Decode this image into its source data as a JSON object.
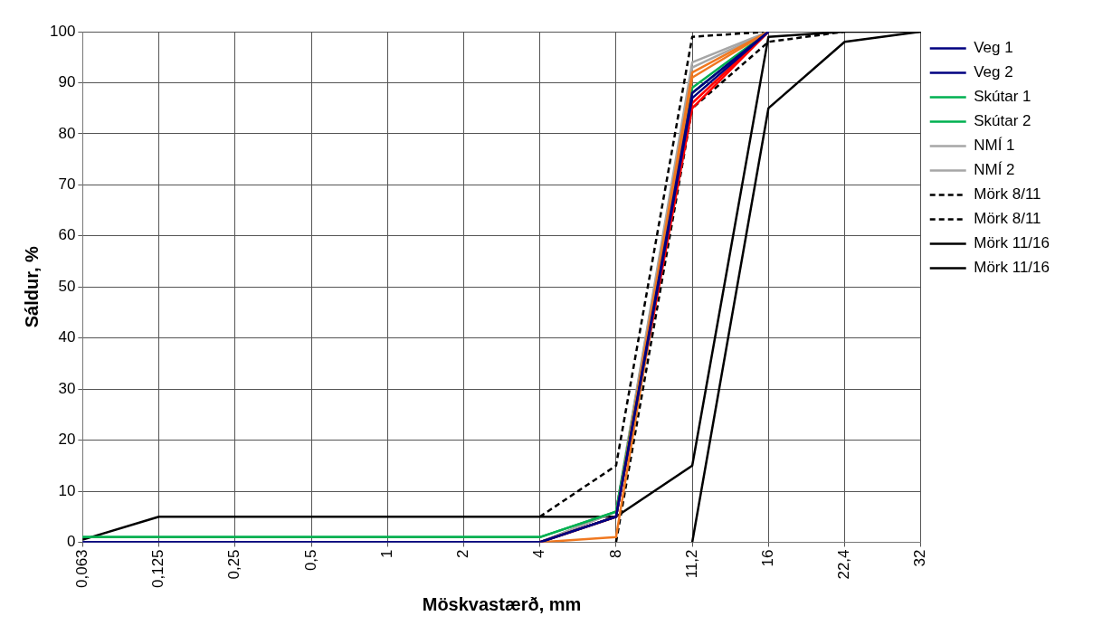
{
  "chart_data": {
    "type": "line",
    "xlabel": "Möskvastærð, mm",
    "ylabel": "Sáldur, %",
    "categories": [
      "0,063",
      "0,125",
      "0,25",
      "0,5",
      "1",
      "2",
      "4",
      "8",
      "11,2",
      "16",
      "22,4",
      "32"
    ],
    "ylim": [
      0,
      100
    ],
    "yticks": [
      0,
      10,
      20,
      30,
      40,
      50,
      60,
      70,
      80,
      90,
      100
    ],
    "grid": true,
    "legend": "right",
    "marker": "none",
    "series": [
      {
        "name": "Veg 1",
        "color": "#000080",
        "values": [
          0,
          0,
          0,
          0,
          0,
          0,
          0,
          5,
          88,
          100,
          null,
          null
        ]
      },
      {
        "name": "Veg 2",
        "color": "#000080",
        "values": [
          0,
          0,
          0,
          0,
          0,
          0,
          0,
          5,
          87,
          100,
          null,
          null
        ]
      },
      {
        "color": "#f07820",
        "values": [
          null,
          null,
          null,
          null,
          null,
          null,
          0,
          1,
          91,
          100,
          null,
          null
        ]
      },
      {
        "color": "#f07820",
        "values": [
          null,
          null,
          null,
          null,
          null,
          null,
          0,
          5,
          92,
          100,
          null,
          null
        ]
      },
      {
        "color": "#ff0000",
        "values": [
          null,
          null,
          null,
          null,
          null,
          null,
          0,
          5,
          85,
          100,
          null,
          null
        ]
      },
      {
        "color": "#ff0000",
        "values": [
          null,
          null,
          null,
          null,
          null,
          null,
          0,
          5,
          86,
          100,
          null,
          null
        ]
      },
      {
        "name": "Skútar 1",
        "color": "#00b050",
        "values": [
          1,
          1,
          1,
          1,
          1,
          1,
          1,
          6,
          89,
          100,
          null,
          null
        ]
      },
      {
        "name": "Skútar 2",
        "color": "#00b050",
        "values": [
          1,
          1,
          1,
          1,
          1,
          1,
          1,
          6,
          88,
          100,
          null,
          null
        ]
      },
      {
        "name": "NMÍ 1",
        "color": "#a6a6a6",
        "values": [
          0,
          0,
          0,
          0,
          0,
          0,
          0,
          6,
          94,
          100,
          null,
          null
        ]
      },
      {
        "name": "NMÍ 2",
        "color": "#a6a6a6",
        "values": [
          0,
          0,
          0,
          0,
          0,
          0,
          0,
          6,
          93,
          100,
          null,
          null
        ]
      },
      {
        "name": "Mörk 8/11",
        "color": "#000000",
        "line_style": "dashed",
        "values": [
          null,
          null,
          null,
          null,
          null,
          null,
          5,
          15,
          99,
          100,
          null,
          null
        ]
      },
      {
        "name": "Mörk 8/11",
        "color": "#000000",
        "line_style": "dashed",
        "values": [
          null,
          null,
          null,
          null,
          null,
          null,
          null,
          0,
          85,
          98,
          100,
          null
        ]
      },
      {
        "name": "Mörk 11/16",
        "color": "#000000",
        "values": [
          0.5,
          5,
          5,
          5,
          5,
          5,
          5,
          5,
          15,
          99,
          100,
          100
        ]
      },
      {
        "name": "Mörk 11/16",
        "color": "#000000",
        "values": [
          null,
          null,
          null,
          null,
          null,
          null,
          null,
          null,
          0,
          85,
          98,
          100
        ]
      }
    ]
  }
}
